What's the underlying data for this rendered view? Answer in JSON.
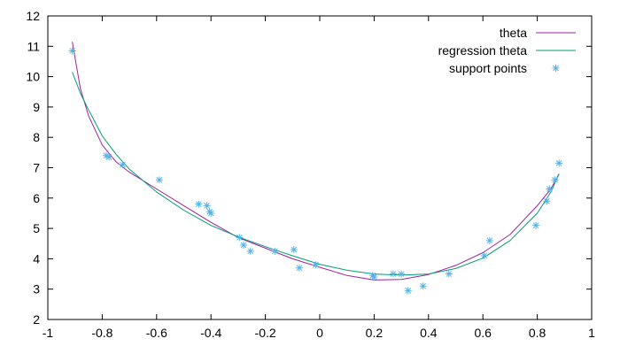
{
  "chart_data": {
    "type": "line",
    "title": "",
    "xlabel": "",
    "ylabel": "",
    "xlim": [
      -1,
      1
    ],
    "ylim": [
      2,
      12
    ],
    "xticks": [
      "-1",
      "-0.8",
      "-0.6",
      "-0.4",
      "-0.2",
      "0",
      "0.2",
      "0.4",
      "0.6",
      "0.8",
      "1"
    ],
    "yticks": [
      "2",
      "3",
      "4",
      "5",
      "6",
      "7",
      "8",
      "9",
      "10",
      "11",
      "12"
    ],
    "grid": false,
    "legend_position": "top-right",
    "series": [
      {
        "name": "theta",
        "kind": "line",
        "color": "#a020a0",
        "x": [
          -0.91,
          -0.88,
          -0.85,
          -0.8,
          -0.75,
          -0.7,
          -0.6,
          -0.5,
          -0.4,
          -0.3,
          -0.2,
          -0.1,
          0.0,
          0.1,
          0.2,
          0.3,
          0.4,
          0.5,
          0.6,
          0.7,
          0.8,
          0.85,
          0.88
        ],
        "y": [
          11.15,
          9.6,
          8.7,
          7.75,
          7.2,
          6.85,
          6.3,
          5.75,
          5.2,
          4.7,
          4.35,
          4.0,
          3.72,
          3.45,
          3.3,
          3.32,
          3.48,
          3.78,
          4.2,
          4.8,
          5.75,
          6.3,
          6.8
        ]
      },
      {
        "name": "regression theta",
        "kind": "line",
        "color": "#009e73",
        "x": [
          -0.91,
          -0.88,
          -0.85,
          -0.8,
          -0.75,
          -0.7,
          -0.6,
          -0.5,
          -0.4,
          -0.3,
          -0.2,
          -0.1,
          0.0,
          0.1,
          0.2,
          0.3,
          0.4,
          0.5,
          0.6,
          0.7,
          0.8,
          0.85,
          0.88
        ],
        "y": [
          10.15,
          9.45,
          8.9,
          8.05,
          7.45,
          6.95,
          6.2,
          5.6,
          5.1,
          4.72,
          4.4,
          4.1,
          3.82,
          3.62,
          3.5,
          3.46,
          3.5,
          3.68,
          4.02,
          4.6,
          5.5,
          6.2,
          6.8
        ]
      },
      {
        "name": "support points",
        "kind": "scatter",
        "color": "#56b4e9",
        "x": [
          -0.91,
          -0.785,
          -0.775,
          -0.725,
          -0.59,
          -0.445,
          -0.415,
          -0.405,
          -0.4,
          -0.295,
          -0.28,
          -0.255,
          -0.165,
          -0.095,
          -0.075,
          -0.015,
          0.195,
          0.2,
          0.27,
          0.3,
          0.325,
          0.38,
          0.475,
          0.605,
          0.625,
          0.795,
          0.835,
          0.845,
          0.865,
          0.88
        ],
        "y": [
          10.85,
          7.4,
          7.35,
          7.1,
          6.6,
          5.8,
          5.75,
          5.55,
          5.5,
          4.7,
          4.45,
          4.25,
          4.25,
          4.3,
          3.7,
          3.8,
          3.45,
          3.4,
          3.5,
          3.5,
          2.95,
          3.1,
          3.5,
          4.1,
          4.6,
          5.1,
          5.9,
          6.3,
          6.6,
          7.15
        ]
      }
    ]
  }
}
